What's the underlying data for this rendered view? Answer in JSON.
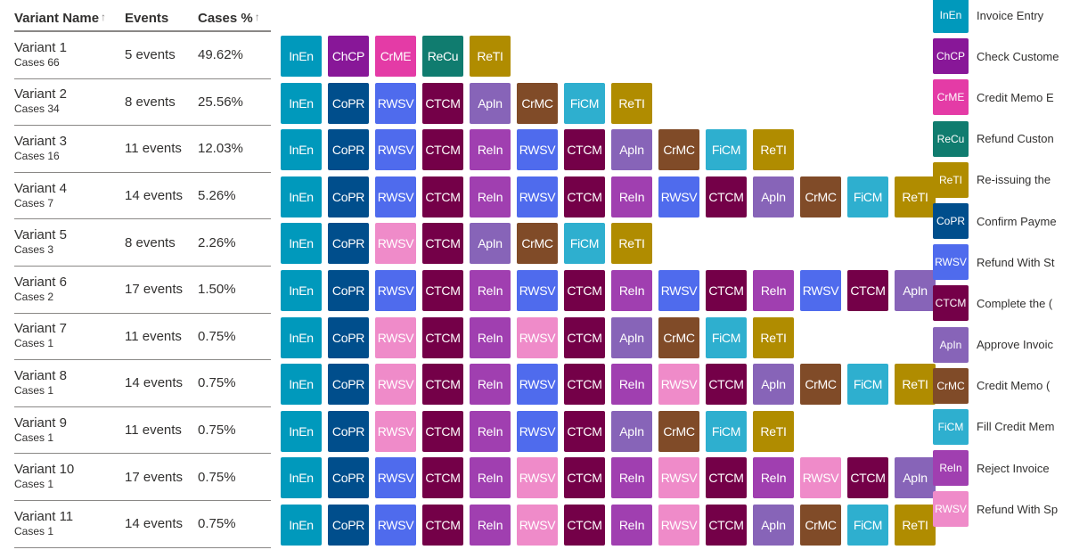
{
  "header": {
    "variant_name": "Variant Name",
    "events": "Events",
    "cases_pct": "Cases %",
    "sort_icon": "↑"
  },
  "activities": [
    {
      "code": "InEn",
      "name": "Invoice Entry",
      "color": "#0099bc"
    },
    {
      "code": "ChCP",
      "name": "Check Custome",
      "color": "#881798"
    },
    {
      "code": "CrME",
      "name": "Credit Memo E",
      "color": "#e43ba6"
    },
    {
      "code": "ReCu",
      "name": "Refund Custon",
      "color": "#107c6f"
    },
    {
      "code": "ReTI",
      "name": "Re-issuing the",
      "color": "#b08c00"
    },
    {
      "code": "CoPR",
      "name": "Confirm Payme",
      "color": "#004e8c"
    },
    {
      "code": "RWSV",
      "name": "Refund With St",
      "color": "#4f6bed"
    },
    {
      "code": "CTCM",
      "name": "Complete the (",
      "color": "#740048"
    },
    {
      "code": "ApIn",
      "name": "Approve Invoic",
      "color": "#8764b8"
    },
    {
      "code": "CrMC",
      "name": "Credit Memo (",
      "color": "#804b28"
    },
    {
      "code": "FiCM",
      "name": "Fill Credit Mem",
      "color": "#2eafcf"
    },
    {
      "code": "ReIn",
      "name": "Reject Invoice",
      "color": "#a03fb0"
    },
    {
      "code": "RWSV",
      "name": "Refund With Sp",
      "color": "#ef8bc9"
    }
  ],
  "variants": [
    {
      "name": "Variant 1",
      "cases": "Cases 66",
      "events": "5 events",
      "pct": "49.62%",
      "flow": [
        0,
        1,
        2,
        3,
        4
      ]
    },
    {
      "name": "Variant 2",
      "cases": "Cases 34",
      "events": "8 events",
      "pct": "25.56%",
      "flow": [
        0,
        5,
        6,
        7,
        8,
        9,
        10,
        4
      ]
    },
    {
      "name": "Variant 3",
      "cases": "Cases 16",
      "events": "11 events",
      "pct": "12.03%",
      "flow": [
        0,
        5,
        6,
        7,
        11,
        6,
        7,
        8,
        9,
        10,
        4
      ]
    },
    {
      "name": "Variant 4",
      "cases": "Cases 7",
      "events": "14 events",
      "pct": "5.26%",
      "flow": [
        0,
        5,
        6,
        7,
        11,
        6,
        7,
        11,
        6,
        7,
        8,
        9,
        10,
        4
      ]
    },
    {
      "name": "Variant 5",
      "cases": "Cases 3",
      "events": "8 events",
      "pct": "2.26%",
      "flow": [
        0,
        5,
        12,
        7,
        8,
        9,
        10,
        4
      ]
    },
    {
      "name": "Variant 6",
      "cases": "Cases 2",
      "events": "17 events",
      "pct": "1.50%",
      "flow": [
        0,
        5,
        6,
        7,
        11,
        6,
        7,
        11,
        6,
        7,
        11,
        6,
        7,
        8
      ]
    },
    {
      "name": "Variant 7",
      "cases": "Cases 1",
      "events": "11 events",
      "pct": "0.75%",
      "flow": [
        0,
        5,
        12,
        7,
        11,
        12,
        7,
        8,
        9,
        10,
        4
      ]
    },
    {
      "name": "Variant 8",
      "cases": "Cases 1",
      "events": "14 events",
      "pct": "0.75%",
      "flow": [
        0,
        5,
        12,
        7,
        11,
        6,
        7,
        11,
        12,
        7,
        8,
        9,
        10,
        4
      ]
    },
    {
      "name": "Variant 9",
      "cases": "Cases 1",
      "events": "11 events",
      "pct": "0.75%",
      "flow": [
        0,
        5,
        12,
        7,
        11,
        6,
        7,
        8,
        9,
        10,
        4
      ]
    },
    {
      "name": "Variant 10",
      "cases": "Cases 1",
      "events": "17 events",
      "pct": "0.75%",
      "flow": [
        0,
        5,
        6,
        7,
        11,
        12,
        7,
        11,
        12,
        7,
        11,
        12,
        7,
        8
      ]
    },
    {
      "name": "Variant 11",
      "cases": "Cases 1",
      "events": "14 events",
      "pct": "0.75%",
      "flow": [
        0,
        5,
        6,
        7,
        11,
        12,
        7,
        11,
        12,
        7,
        8,
        9,
        10,
        4
      ]
    }
  ]
}
